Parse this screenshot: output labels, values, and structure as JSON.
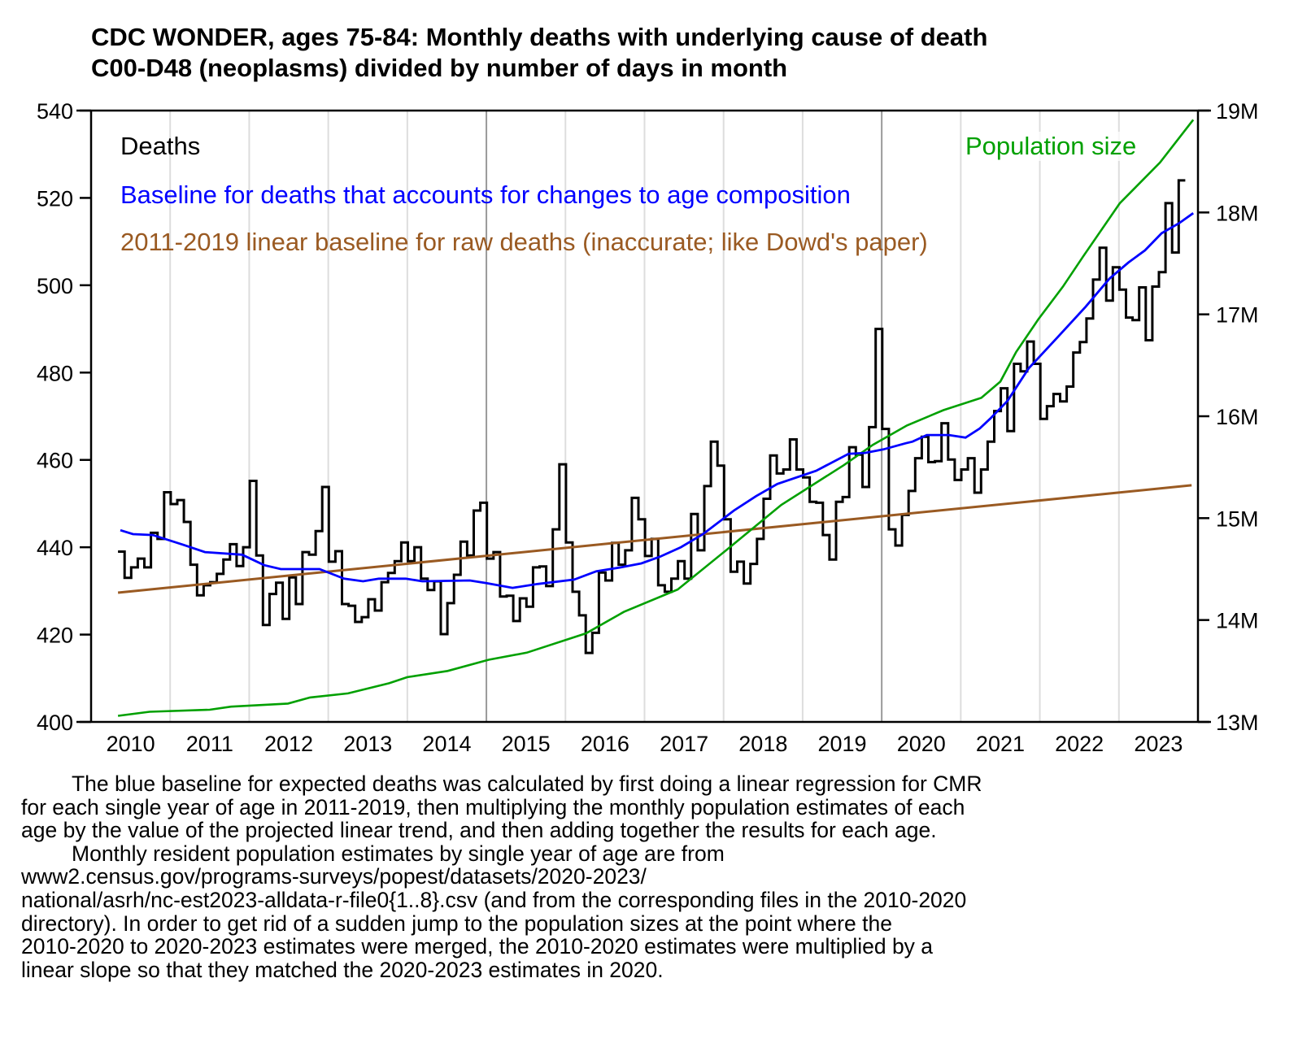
{
  "chart_data": {
    "type": "line",
    "title": [
      "CDC WONDER, ages 75-84: Monthly deaths with underlying cause of death",
      "C00-D48 (neoplasms) divided by number of days in month"
    ],
    "xlabel": "",
    "ylabel": "",
    "xlim": [
      2010,
      2024
    ],
    "ylim": [
      400,
      540
    ],
    "y2lim": [
      13,
      19
    ],
    "grid": "vertical year lines",
    "x_tick_labels": [
      "2010",
      "2011",
      "2012",
      "2013",
      "2014",
      "2015",
      "2016",
      "2017",
      "2018",
      "2019",
      "2020",
      "2021",
      "2022",
      "2023"
    ],
    "y_ticks": [
      400,
      420,
      440,
      460,
      480,
      500,
      520,
      540
    ],
    "y_tick_labels": [
      "400",
      "420",
      "440",
      "460",
      "480",
      "500",
      "520",
      "540"
    ],
    "y2_ticks": [
      13,
      14,
      15,
      16,
      17,
      18,
      19
    ],
    "y2_tick_labels": [
      "13M",
      "14M",
      "15M",
      "16M",
      "17M",
      "18M",
      "19M"
    ],
    "legend": {
      "placement": "top-left",
      "deaths": "Deaths",
      "blue": "Baseline for deaths that accounts for changes to age composition",
      "brown": "2011-2019 linear baseline for raw deaths (inaccurate; like Dowd's paper)",
      "green": "Population size"
    },
    "colors": {
      "deaths": "#000000",
      "blue": "#0000ff",
      "brown": "#9a5a22",
      "green": "#00a000",
      "grid": "#dddddd",
      "grid_major": "#999999"
    },
    "series": [
      {
        "name": "Deaths",
        "style": "step",
        "axis": "left",
        "x_start": 2010.34,
        "x_step": 0.08333,
        "values": [
          439,
          433,
          435.4,
          437.4,
          435.4,
          443.3,
          441.9,
          452.6,
          449.9,
          450.8,
          445.8,
          436,
          429,
          431.3,
          432,
          433.9,
          437.2,
          440.7,
          435.7,
          440,
          455.2,
          438.1,
          422.2,
          429.3,
          431.9,
          423.6,
          433.1,
          427,
          438.9,
          438.3,
          443.7,
          453.8,
          436.7,
          439.1,
          427,
          426.6,
          422.9,
          424,
          428.1,
          425.5,
          432,
          434.1,
          436.8,
          441.1,
          436.8,
          440,
          432.8,
          430.2,
          432.2,
          420.1,
          427.2,
          433.7,
          441.3,
          438.1,
          448.4,
          450.2,
          437.4,
          438.9,
          428.7,
          428.9,
          423.1,
          428.3,
          426.4,
          435.4,
          435.6,
          431.1,
          444.1,
          459,
          441.1,
          429.8,
          424.4,
          415.8,
          420.4,
          434.2,
          432.4,
          441,
          436,
          439.3,
          451.3,
          446.4,
          438,
          441.9,
          431.3,
          429.8,
          432.8,
          436.8,
          432.8,
          447.6,
          439.3,
          454,
          464.2,
          458.7,
          446.4,
          434.4,
          436.7,
          431.7,
          436.2,
          441.9,
          451.1,
          461,
          456.9,
          457.8,
          464.7,
          457.8,
          456,
          450.4,
          450.2,
          442.8,
          437.2,
          450.4,
          451.5,
          462.9,
          461.2,
          453.8,
          467.5,
          490,
          467.1,
          444.1,
          440.4,
          447.4,
          452.9,
          460.4,
          465.3,
          459.5,
          459.7,
          468.4,
          460.1,
          455.4,
          457.8,
          460.4,
          452.5,
          457.8,
          464.2,
          471.2,
          476.4,
          466.6,
          482,
          480.3,
          487.1,
          482,
          469.4,
          472.3,
          475.1,
          473.4,
          476.8,
          484.6,
          487,
          492.4,
          501.3,
          508.6,
          496.5,
          504.1,
          499,
          492.6,
          492,
          499.5,
          487.4,
          499.7,
          503,
          518.8,
          507.5,
          524
        ]
      },
      {
        "name": "Baseline for deaths that accounts for changes to age composition",
        "style": "line",
        "axis": "left",
        "x": [
          2010.37,
          2010.53,
          2010.78,
          2011.16,
          2011.44,
          2011.91,
          2012.19,
          2012.4,
          2012.89,
          2013.2,
          2013.44,
          2013.64,
          2013.98,
          2014.19,
          2014.79,
          2015.0,
          2015.33,
          2015.65,
          2016.11,
          2016.39,
          2016.7,
          2016.96,
          2017.19,
          2017.46,
          2017.74,
          2018.13,
          2018.41,
          2018.68,
          2019.17,
          2019.58,
          2019.79,
          2020.02,
          2020.3,
          2020.39,
          2020.57,
          2020.85,
          2021.06,
          2021.24,
          2021.37,
          2021.59,
          2021.86,
          2022.24,
          2022.58,
          2022.88,
          2023.12,
          2023.33,
          2023.54,
          2023.76,
          2023.94
        ],
        "values": [
          443.9,
          443,
          442.8,
          440.6,
          438.9,
          438.3,
          435.9,
          435,
          435,
          432.8,
          432.2,
          432.8,
          432.8,
          432.2,
          432.4,
          431.8,
          430.7,
          431.6,
          432.6,
          434.5,
          435.4,
          436.3,
          437.8,
          440,
          443,
          448.4,
          451.7,
          454.5,
          457.5,
          461.4,
          461.6,
          462.4,
          463.8,
          464.2,
          465.7,
          465.7,
          465.1,
          467.2,
          469.4,
          473.5,
          481,
          488.4,
          495.1,
          501.5,
          505.2,
          508,
          511.9,
          514.2,
          516.5
        ]
      },
      {
        "name": "2011-2019 linear baseline for raw deaths (inaccurate; like Dowd's paper)",
        "style": "line",
        "axis": "left",
        "x": [
          2010.34,
          2023.92
        ],
        "values": [
          429.6,
          454.2
        ]
      },
      {
        "name": "Population size",
        "style": "line",
        "axis": "right",
        "unit": "M",
        "x": [
          2010.34,
          2010.74,
          2011.5,
          2011.77,
          2012.49,
          2012.77,
          2013.25,
          2013.77,
          2014.0,
          2014.51,
          2015.03,
          2015.51,
          2016.26,
          2016.74,
          2017.42,
          2018.04,
          2018.73,
          2019.52,
          2019.89,
          2020.32,
          2020.78,
          2021.26,
          2021.5,
          2021.7,
          2021.98,
          2022.29,
          2022.55,
          2023.01,
          2023.52,
          2023.94
        ],
        "values": [
          13.06,
          13.1,
          13.12,
          13.15,
          13.18,
          13.24,
          13.28,
          13.38,
          13.44,
          13.5,
          13.61,
          13.68,
          13.87,
          14.08,
          14.3,
          14.69,
          15.13,
          15.52,
          15.72,
          15.91,
          16.06,
          16.18,
          16.34,
          16.63,
          16.95,
          17.27,
          17.57,
          18.09,
          18.49,
          18.91
        ]
      }
    ]
  },
  "footnote": {
    "paragraph1": [
      "The blue baseline for expected deaths was calculated by first doing a linear regression for CMR",
      "for each single year of age in 2011-2019, then multiplying the monthly population estimates of each",
      "age by the value of the projected linear trend, and then adding together the results for each age."
    ],
    "paragraph2": [
      "Monthly resident population estimates by single year of age are from",
      "www2.census.gov/programs-surveys/popest/datasets/2020-2023/",
      "national/asrh/nc-est2023-alldata-r-file0{1..8}.csv (and from the corresponding files in the 2010-2020",
      "directory). In order to get rid of a sudden jump to the population sizes at the point where the",
      "2010-2020 to 2020-2023 estimates were merged, the 2010-2020 estimates were multiplied by a",
      "linear slope so that they matched the 2020-2023 estimates in 2020."
    ]
  }
}
